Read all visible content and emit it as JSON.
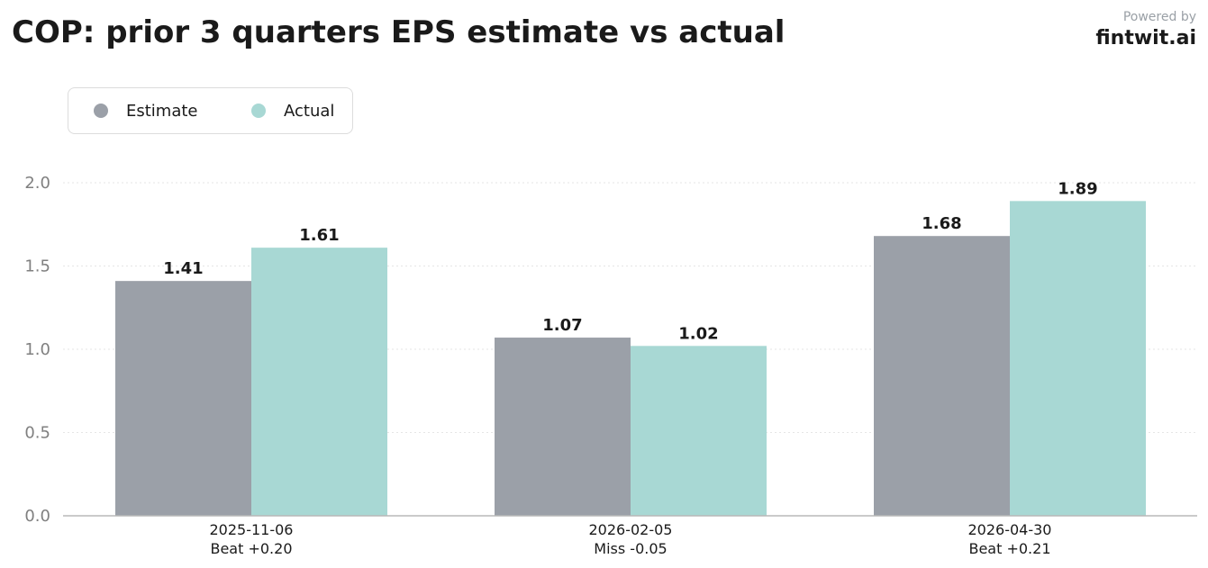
{
  "header": {
    "title": "COP: prior 3 quarters EPS estimate vs actual"
  },
  "brand": {
    "powered_by": "Powered by",
    "name": "fintwit.ai"
  },
  "legend": {
    "items": [
      {
        "label": "Estimate",
        "color": "#9ba0a8"
      },
      {
        "label": "Actual",
        "color": "#a8d8d4"
      }
    ]
  },
  "chart_data": {
    "type": "bar",
    "title": "COP: prior 3 quarters EPS estimate vs actual",
    "xlabel": "",
    "ylabel": "",
    "categories": [
      "2025-11-06",
      "2026-02-05",
      "2026-04-30"
    ],
    "category_sublabels": [
      "Beat +0.20",
      "Miss -0.05",
      "Beat +0.21"
    ],
    "series": [
      {
        "name": "Estimate",
        "values": [
          1.41,
          1.07,
          1.68
        ],
        "color": "#9ba0a8"
      },
      {
        "name": "Actual",
        "values": [
          1.61,
          1.02,
          1.89
        ],
        "color": "#a8d8d4"
      }
    ],
    "value_labels": [
      [
        "1.41",
        "1.07",
        "1.68"
      ],
      [
        "1.61",
        "1.02",
        "1.89"
      ]
    ],
    "ylim": [
      0,
      2.0
    ],
    "yticks": [
      0.0,
      0.5,
      1.0,
      1.5,
      2.0
    ],
    "ytick_labels": [
      "0.0",
      "0.5",
      "1.0",
      "1.5",
      "2.0"
    ],
    "grid": true,
    "legend_position": "top-left"
  }
}
